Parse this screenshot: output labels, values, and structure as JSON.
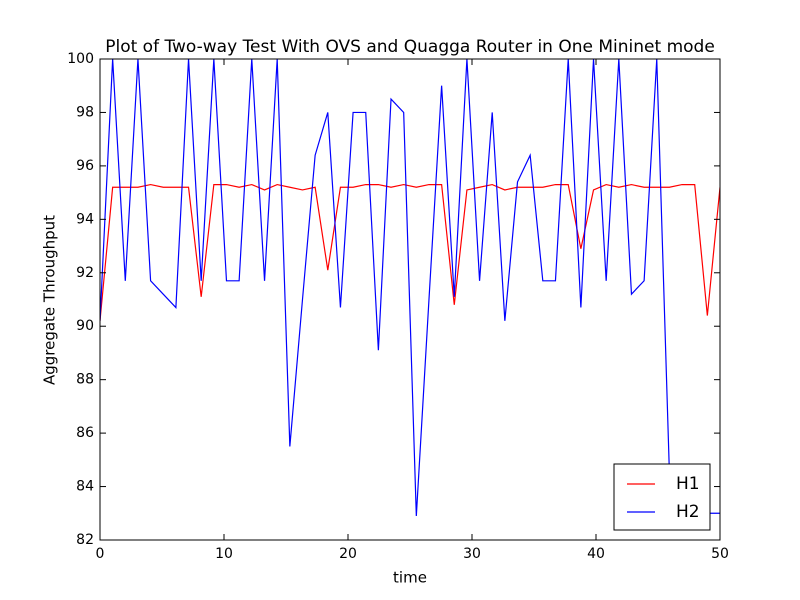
{
  "chart_data": {
    "type": "line",
    "title": "Plot of Two-way Test With OVS and Quagga Router in One Mininet mode",
    "x_label": "time",
    "y_label": "Aggregate Throughput",
    "x": [
      0,
      1.02,
      2.04,
      3.06,
      4.08,
      5.1,
      6.12,
      7.14,
      8.16,
      9.18,
      10.2,
      11.22,
      12.24,
      13.27,
      14.29,
      15.31,
      16.33,
      17.35,
      18.37,
      19.39,
      20.41,
      21.43,
      22.45,
      23.47,
      24.49,
      25.51,
      26.53,
      27.55,
      28.57,
      29.59,
      30.61,
      31.63,
      32.65,
      33.67,
      34.69,
      35.71,
      36.73,
      37.76,
      38.78,
      39.8,
      40.82,
      41.84,
      42.86,
      43.88,
      44.9,
      45.92,
      46.94,
      47.96,
      48.98,
      50
    ],
    "series": [
      {
        "name": "H1",
        "color": "#ff0000",
        "values": [
          90.2,
          95.2,
          95.2,
          95.2,
          95.3,
          95.2,
          95.2,
          95.2,
          91.1,
          95.3,
          95.3,
          95.2,
          95.3,
          95.1,
          95.3,
          95.2,
          95.1,
          95.2,
          92.1,
          95.2,
          95.2,
          95.3,
          95.3,
          95.2,
          95.3,
          95.2,
          95.3,
          95.3,
          90.8,
          95.1,
          95.2,
          95.3,
          95.1,
          95.2,
          95.2,
          95.2,
          95.3,
          95.3,
          92.9,
          95.1,
          95.3,
          95.2,
          95.3,
          95.2,
          95.2,
          95.2,
          95.3,
          95.3,
          90.4,
          95.2
        ]
      },
      {
        "name": "H2",
        "color": "#0000ff",
        "values": [
          90.2,
          100,
          91.7,
          100,
          91.7,
          91.2,
          90.7,
          100,
          91.7,
          100,
          91.7,
          91.7,
          100,
          91.7,
          100,
          85.5,
          91,
          96.4,
          98,
          90.7,
          98,
          98,
          89.1,
          98.5,
          98,
          82.9,
          91,
          99,
          91.1,
          100,
          91.7,
          98,
          90.2,
          95.4,
          96.4,
          91.7,
          91.7,
          100,
          90.7,
          100,
          91.7,
          100,
          91.2,
          91.7,
          100,
          84.5,
          83,
          83,
          83,
          83
        ]
      }
    ],
    "xlim": [
      0,
      50
    ],
    "ylim": [
      82,
      100
    ],
    "xticks": [
      0,
      10,
      20,
      30,
      40,
      50
    ],
    "yticks": [
      82,
      84,
      86,
      88,
      90,
      92,
      94,
      96,
      98,
      100
    ],
    "legend": "lower right"
  }
}
